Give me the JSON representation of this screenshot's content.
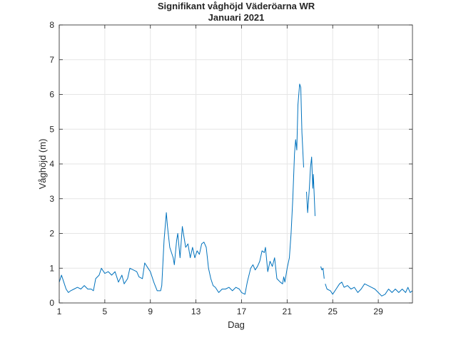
{
  "chart_data": {
    "type": "line",
    "title": "Signifikant våghöjd Väderöarna WR",
    "subtitle": "Januari 2021",
    "xlabel": "Dag",
    "ylabel": "Våghöjd (m)",
    "xlim": [
      1,
      32
    ],
    "ylim": [
      0,
      8
    ],
    "xticks": [
      1,
      5,
      9,
      13,
      17,
      21,
      25,
      29
    ],
    "yticks": [
      0,
      1,
      2,
      3,
      4,
      5,
      6,
      7,
      8
    ],
    "grid": true,
    "line_color": "#0072BD",
    "series": [
      {
        "name": "Våghöjd",
        "segments": [
          [
            [
              1.0,
              0.6
            ],
            [
              1.2,
              0.8
            ],
            [
              1.4,
              0.6
            ],
            [
              1.6,
              0.4
            ],
            [
              1.8,
              0.3
            ],
            [
              2.0,
              0.35
            ],
            [
              2.3,
              0.4
            ],
            [
              2.6,
              0.45
            ],
            [
              2.9,
              0.4
            ],
            [
              3.2,
              0.5
            ],
            [
              3.5,
              0.4
            ],
            [
              3.8,
              0.4
            ],
            [
              4.0,
              0.35
            ],
            [
              4.2,
              0.7
            ],
            [
              4.5,
              0.8
            ],
            [
              4.7,
              1.0
            ],
            [
              5.0,
              0.85
            ],
            [
              5.3,
              0.9
            ],
            [
              5.6,
              0.8
            ],
            [
              5.9,
              0.9
            ],
            [
              6.2,
              0.6
            ],
            [
              6.5,
              0.8
            ],
            [
              6.7,
              0.55
            ],
            [
              7.0,
              0.7
            ],
            [
              7.2,
              1.0
            ],
            [
              7.5,
              0.95
            ],
            [
              7.8,
              0.9
            ],
            [
              8.0,
              0.75
            ],
            [
              8.3,
              0.7
            ],
            [
              8.5,
              1.15
            ],
            [
              8.8,
              1.0
            ],
            [
              9.0,
              0.9
            ],
            [
              9.3,
              0.6
            ],
            [
              9.6,
              0.35
            ],
            [
              9.9,
              0.35
            ],
            [
              10.0,
              0.5
            ],
            [
              10.2,
              1.8
            ],
            [
              10.4,
              2.6
            ],
            [
              10.5,
              2.2
            ],
            [
              10.7,
              1.6
            ],
            [
              11.0,
              1.3
            ],
            [
              11.1,
              1.1
            ],
            [
              11.3,
              1.8
            ],
            [
              11.4,
              2.0
            ],
            [
              11.6,
              1.3
            ],
            [
              11.8,
              2.2
            ],
            [
              11.9,
              2.0
            ],
            [
              12.1,
              1.6
            ],
            [
              12.3,
              1.7
            ],
            [
              12.5,
              1.3
            ],
            [
              12.7,
              1.6
            ],
            [
              12.9,
              1.3
            ],
            [
              13.1,
              1.5
            ],
            [
              13.3,
              1.4
            ],
            [
              13.5,
              1.7
            ],
            [
              13.7,
              1.75
            ],
            [
              13.9,
              1.6
            ],
            [
              14.1,
              1.0
            ],
            [
              14.3,
              0.7
            ],
            [
              14.5,
              0.5
            ],
            [
              14.7,
              0.45
            ],
            [
              15.0,
              0.3
            ],
            [
              15.3,
              0.4
            ],
            [
              15.6,
              0.4
            ],
            [
              15.9,
              0.45
            ],
            [
              16.2,
              0.35
            ],
            [
              16.5,
              0.45
            ],
            [
              16.8,
              0.4
            ],
            [
              17.0,
              0.3
            ],
            [
              17.3,
              0.25
            ],
            [
              17.5,
              0.6
            ],
            [
              17.8,
              1.0
            ],
            [
              18.0,
              1.1
            ],
            [
              18.2,
              0.95
            ],
            [
              18.4,
              1.05
            ],
            [
              18.6,
              1.2
            ],
            [
              18.8,
              1.5
            ],
            [
              19.0,
              1.45
            ],
            [
              19.1,
              1.6
            ],
            [
              19.3,
              0.9
            ],
            [
              19.5,
              1.2
            ],
            [
              19.7,
              1.05
            ],
            [
              19.9,
              1.3
            ],
            [
              20.1,
              0.7
            ],
            [
              20.4,
              0.6
            ],
            [
              20.6,
              0.55
            ],
            [
              20.7,
              0.75
            ],
            [
              20.8,
              0.6
            ],
            [
              21.0,
              1.0
            ],
            [
              21.2,
              1.3
            ],
            [
              21.35,
              2.0
            ],
            [
              21.5,
              3.0
            ],
            [
              21.65,
              4.3
            ],
            [
              21.75,
              4.7
            ],
            [
              21.85,
              4.4
            ],
            [
              21.95,
              5.7
            ],
            [
              22.1,
              6.3
            ],
            [
              22.2,
              6.2
            ],
            [
              22.3,
              4.9
            ],
            [
              22.45,
              3.9
            ]
          ],
          [
            [
              22.7,
              3.2
            ],
            [
              22.8,
              2.6
            ],
            [
              22.95,
              3.3
            ],
            [
              23.05,
              3.9
            ],
            [
              23.15,
              4.2
            ],
            [
              23.25,
              3.3
            ],
            [
              23.3,
              3.7
            ],
            [
              23.45,
              2.5
            ]
          ],
          [
            [
              23.95,
              1.05
            ],
            [
              24.05,
              0.95
            ],
            [
              24.15,
              1.0
            ],
            [
              24.25,
              0.7
            ]
          ],
          [
            [
              24.35,
              0.55
            ],
            [
              24.5,
              0.4
            ],
            [
              24.8,
              0.35
            ],
            [
              25.0,
              0.25
            ],
            [
              25.3,
              0.4
            ],
            [
              25.6,
              0.55
            ],
            [
              25.8,
              0.6
            ],
            [
              26.0,
              0.45
            ],
            [
              26.3,
              0.5
            ],
            [
              26.6,
              0.4
            ],
            [
              26.9,
              0.45
            ],
            [
              27.2,
              0.3
            ],
            [
              27.5,
              0.4
            ],
            [
              27.8,
              0.55
            ],
            [
              28.1,
              0.5
            ],
            [
              28.4,
              0.45
            ],
            [
              28.7,
              0.4
            ],
            [
              29.0,
              0.3
            ],
            [
              29.3,
              0.2
            ],
            [
              29.6,
              0.25
            ],
            [
              29.9,
              0.4
            ],
            [
              30.2,
              0.3
            ],
            [
              30.5,
              0.4
            ],
            [
              30.8,
              0.3
            ],
            [
              31.1,
              0.4
            ],
            [
              31.4,
              0.3
            ],
            [
              31.6,
              0.45
            ],
            [
              31.8,
              0.3
            ],
            [
              32.0,
              0.35
            ]
          ]
        ]
      }
    ]
  }
}
